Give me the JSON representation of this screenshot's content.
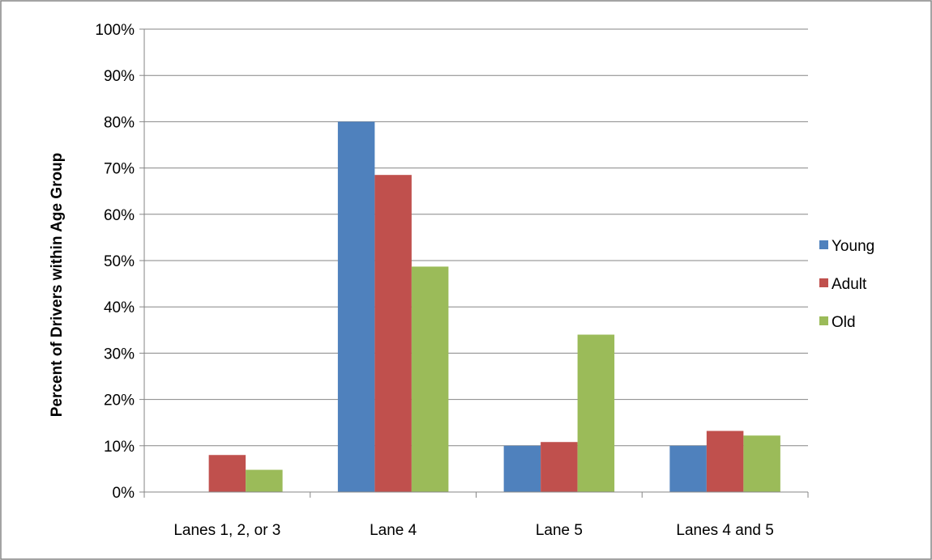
{
  "chart_data": {
    "type": "bar",
    "categories": [
      "Lanes 1, 2, or 3",
      "Lane 4",
      "Lane 5",
      "Lanes 4 and 5"
    ],
    "series": [
      {
        "name": "Young",
        "values": [
          0,
          80,
          10,
          10
        ],
        "color": "#4F81BD"
      },
      {
        "name": "Adult",
        "values": [
          8,
          68.5,
          10.8,
          13.2
        ],
        "color": "#C0504D"
      },
      {
        "name": "Old",
        "values": [
          4.8,
          48.7,
          34,
          12.2
        ],
        "color": "#9BBB59"
      }
    ],
    "title": "",
    "xlabel": "",
    "ylabel": "Percent of Drivers within Age Group",
    "ylim": [
      0,
      100
    ],
    "yticks": [
      0,
      10,
      20,
      30,
      40,
      50,
      60,
      70,
      80,
      90,
      100
    ],
    "ytick_labels": [
      "0%",
      "10%",
      "20%",
      "30%",
      "40%",
      "50%",
      "60%",
      "70%",
      "80%",
      "90%",
      "100%"
    ],
    "grid": true,
    "legend_position": "right"
  }
}
